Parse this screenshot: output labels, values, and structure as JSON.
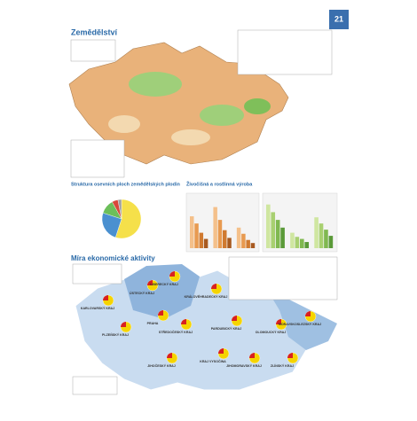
{
  "page_number": "21",
  "agriculture": {
    "title": "Zemědělství"
  },
  "crops": {
    "title": "Struktura osevních ploch zemědělských plodin",
    "chart_data": {
      "type": "pie",
      "values": [
        55,
        25,
        12,
        5,
        3
      ],
      "colors": [
        "#f5e04a",
        "#4a90d0",
        "#6cbf5a",
        "#d8483a",
        "#a0a0a0"
      ]
    }
  },
  "production": {
    "title": "Živočišná a rostlinná výroba",
    "charts": [
      {
        "type": "bar",
        "ylim": [
          0,
          100
        ],
        "values": [
          62,
          48,
          30,
          18,
          80,
          55,
          35,
          20,
          40,
          28,
          16,
          10
        ],
        "colors": [
          "#f4c08a",
          "#e89a50",
          "#d07a30",
          "#a85a20"
        ]
      },
      {
        "type": "bar",
        "ylim": [
          0,
          100
        ],
        "values": [
          85,
          70,
          55,
          40,
          30,
          22,
          18,
          12,
          60,
          48,
          36,
          24
        ],
        "colors": [
          "#cfe6a0",
          "#a8d070",
          "#80b850",
          "#5a9a38"
        ]
      }
    ]
  },
  "economy": {
    "title": "Míra ekonomické aktivity",
    "regions": [
      "KARLOVARSKÝ KRAJ",
      "ÚSTECKÝ KRAJ",
      "LIBERECKÝ KRAJ",
      "KRÁLOVÉHRADECKÝ KRAJ",
      "PRAHA",
      "STŘEDOČESKÝ KRAJ",
      "PARDUBICKÝ KRAJ",
      "PLZEŇSKÝ KRAJ",
      "OLOMOUCKÝ KRAJ",
      "MORAVSKOSLEZSKÝ KRAJ",
      "JIHOČESKÝ KRAJ",
      "KRAJ VYSOČINA",
      "JIHOMORAVSKÝ KRAJ",
      "ZLÍNSKÝ KRAJ"
    ]
  }
}
